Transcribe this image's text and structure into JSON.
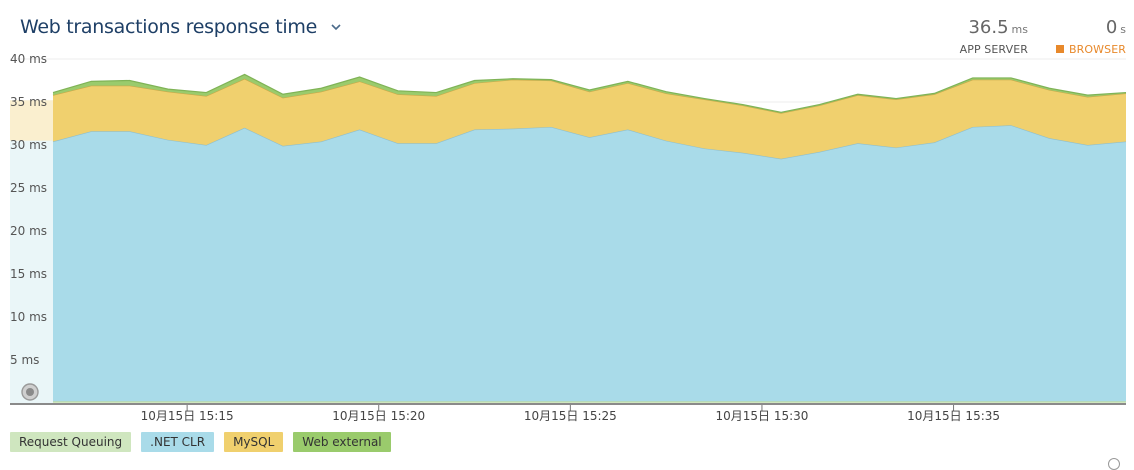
{
  "header": {
    "title": "Web transactions response time"
  },
  "stats": {
    "app_server": {
      "value": "36.5",
      "unit": "ms",
      "label": "APP SERVER"
    },
    "browser": {
      "value": "0",
      "unit": "s",
      "label": "BROWSER"
    }
  },
  "legend": [
    {
      "label": "Request Queuing",
      "color": "#cfe6bf"
    },
    {
      "label": ".NET CLR",
      "color": "#a9dbe9"
    },
    {
      "label": "MySQL",
      "color": "#f0d06e"
    },
    {
      "label": "Web external",
      "color": "#9acb6c"
    }
  ],
  "colors": {
    "request_queuing": "#cfe6bf",
    "net_clr": "#a9dbe9",
    "mysql": "#f0d06e",
    "web_external": "#9acb6c",
    "browser_accent": "#e8892b",
    "title": "#1e3f66"
  },
  "chart_data": {
    "type": "area",
    "stacked": true,
    "title": "Web transactions response time",
    "ylim": [
      0,
      40
    ],
    "y_ticks": [
      "5 ms",
      "10 ms",
      "15 ms",
      "20 ms",
      "25 ms",
      "30 ms",
      "35 ms",
      "40 ms"
    ],
    "x_ticks": [
      "10月15日 15:15",
      "10月15日 15:20",
      "10月15日 15:25",
      "10月15日 15:30",
      "10月15日 15:35"
    ],
    "x_tick_minutes": [
      15,
      20,
      25,
      30,
      35
    ],
    "x_minutes": [
      11.5,
      12.5,
      13.5,
      14.5,
      15.5,
      16.5,
      17.5,
      18.5,
      19.5,
      20.5,
      21.5,
      22.5,
      23.5,
      24.5,
      25.5,
      26.5,
      27.5,
      28.5,
      29.5,
      30.5,
      31.5,
      32.5,
      33.5,
      34.5,
      35.5,
      36.5,
      37.5,
      38.5,
      39.5
    ],
    "series": [
      {
        "name": "Request Queuing",
        "values": [
          0.2,
          0.2,
          0.2,
          0.2,
          0.2,
          0.2,
          0.2,
          0.2,
          0.2,
          0.2,
          0.2,
          0.2,
          0.2,
          0.2,
          0.2,
          0.2,
          0.2,
          0.2,
          0.2,
          0.2,
          0.2,
          0.2,
          0.2,
          0.2,
          0.2,
          0.2,
          0.2,
          0.2,
          0.2
        ]
      },
      {
        "name": ".NET CLR",
        "values": [
          30.2,
          31.4,
          31.4,
          30.4,
          29.8,
          31.8,
          29.7,
          30.2,
          31.6,
          30.0,
          30.0,
          31.6,
          31.7,
          31.9,
          30.7,
          31.6,
          30.3,
          29.4,
          28.9,
          28.2,
          29.0,
          30.0,
          29.5,
          30.1,
          31.9,
          32.1,
          30.6,
          29.8,
          30.2
        ]
      },
      {
        "name": "MySQL",
        "values": [
          5.4,
          5.3,
          5.3,
          5.6,
          5.7,
          5.7,
          5.6,
          5.8,
          5.6,
          5.7,
          5.5,
          5.4,
          5.7,
          5.4,
          5.3,
          5.4,
          5.5,
          5.7,
          5.5,
          5.3,
          5.4,
          5.6,
          5.6,
          5.6,
          5.5,
          5.3,
          5.6,
          5.6,
          5.6
        ]
      },
      {
        "name": "Web external",
        "values": [
          0.3,
          0.5,
          0.6,
          0.3,
          0.4,
          0.5,
          0.4,
          0.4,
          0.5,
          0.4,
          0.4,
          0.3,
          0.1,
          0.1,
          0.2,
          0.2,
          0.2,
          0.1,
          0.1,
          0.1,
          0.1,
          0.1,
          0.1,
          0.1,
          0.2,
          0.2,
          0.2,
          0.2,
          0.1
        ]
      }
    ],
    "shaded_region": {
      "x_range_minutes": [
        11.0,
        11.5
      ],
      "ylim": [
        0,
        35.2
      ]
    }
  }
}
